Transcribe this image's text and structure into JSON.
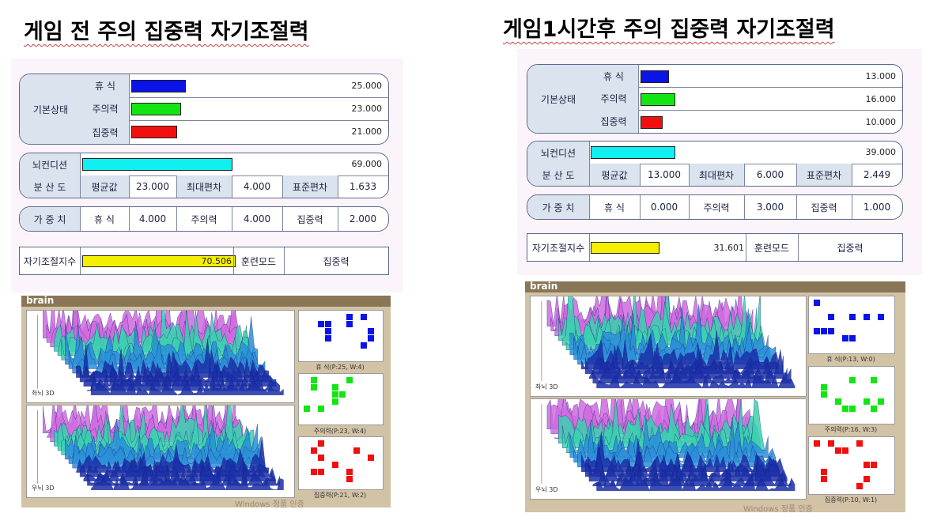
{
  "left": {
    "heading": "게임 전 주의 집중력 자기조절력",
    "basic": {
      "label": "기본상태",
      "rows": [
        {
          "name": "휴 식",
          "value": "25.000",
          "level": 25,
          "color": "#0a14e6"
        },
        {
          "name": "주의력",
          "value": "23.000",
          "level": 23,
          "color": "#12e612"
        },
        {
          "name": "집중력",
          "value": "21.000",
          "level": 21,
          "color": "#f01010"
        }
      ]
    },
    "condition": {
      "label": "뇌컨디션",
      "value": "69.000",
      "level": 69,
      "color": "#10f0f0"
    },
    "dispersion": {
      "label": "분 산 도",
      "items": [
        {
          "name": "평균값",
          "value": "23.000"
        },
        {
          "name": "최대편차",
          "value": "4.000"
        },
        {
          "name": "표준편차",
          "value": "1.633"
        }
      ]
    },
    "weight": {
      "label": "가 중 치",
      "items": [
        {
          "name": "휴 식",
          "value": "4.000"
        },
        {
          "name": "주의력",
          "value": "4.000"
        },
        {
          "name": "집중력",
          "value": "2.000"
        }
      ]
    },
    "index": {
      "label": "자기조절지수",
      "value": "70.506",
      "level": 70.506,
      "color": "#f5f000",
      "mode_label": "훈련모드",
      "mode_value": "집중력"
    },
    "brain": {
      "title": "brain",
      "plot_labels": [
        "좌뇌 3D",
        "우뇌 3D"
      ],
      "captions": [
        "휴 식(P:25, W:4)",
        "주의력(P:23, W:4)",
        "집중력(P:21, W:2)"
      ],
      "watermark": "Windows 정품 인증"
    }
  },
  "right": {
    "heading": "게임1시간후  주의 집중력 자기조절력",
    "basic": {
      "label": "기본상태",
      "rows": [
        {
          "name": "휴 식",
          "value": "13.000",
          "level": 13,
          "color": "#0a14e6"
        },
        {
          "name": "주의력",
          "value": "16.000",
          "level": 16,
          "color": "#12e612"
        },
        {
          "name": "집중력",
          "value": "10.000",
          "level": 10,
          "color": "#f01010"
        }
      ]
    },
    "condition": {
      "label": "뇌컨디션",
      "value": "39.000",
      "level": 39,
      "color": "#10f0f0"
    },
    "dispersion": {
      "label": "분 산 도",
      "items": [
        {
          "name": "평균값",
          "value": "13.000"
        },
        {
          "name": "최대편차",
          "value": "6.000"
        },
        {
          "name": "표준편차",
          "value": "2.449"
        }
      ]
    },
    "weight": {
      "label": "가 중 치",
      "items": [
        {
          "name": "휴 식",
          "value": "0.000"
        },
        {
          "name": "주의력",
          "value": "3.000"
        },
        {
          "name": "집중력",
          "value": "1.000"
        }
      ]
    },
    "index": {
      "label": "자기조절지수",
      "value": "31.601",
      "level": 31.601,
      "color": "#f5f000",
      "mode_label": "훈련모드",
      "mode_value": "집중력"
    },
    "brain": {
      "title": "brain",
      "plot_labels": [
        "좌뇌 3D",
        "우뇌 3D"
      ],
      "captions": [
        "휴 식(P:13, W:0)",
        "주의력(P:16, W:3)",
        "집중력(P:10, W:1)"
      ],
      "watermark": "Windows 정품 인증"
    }
  }
}
